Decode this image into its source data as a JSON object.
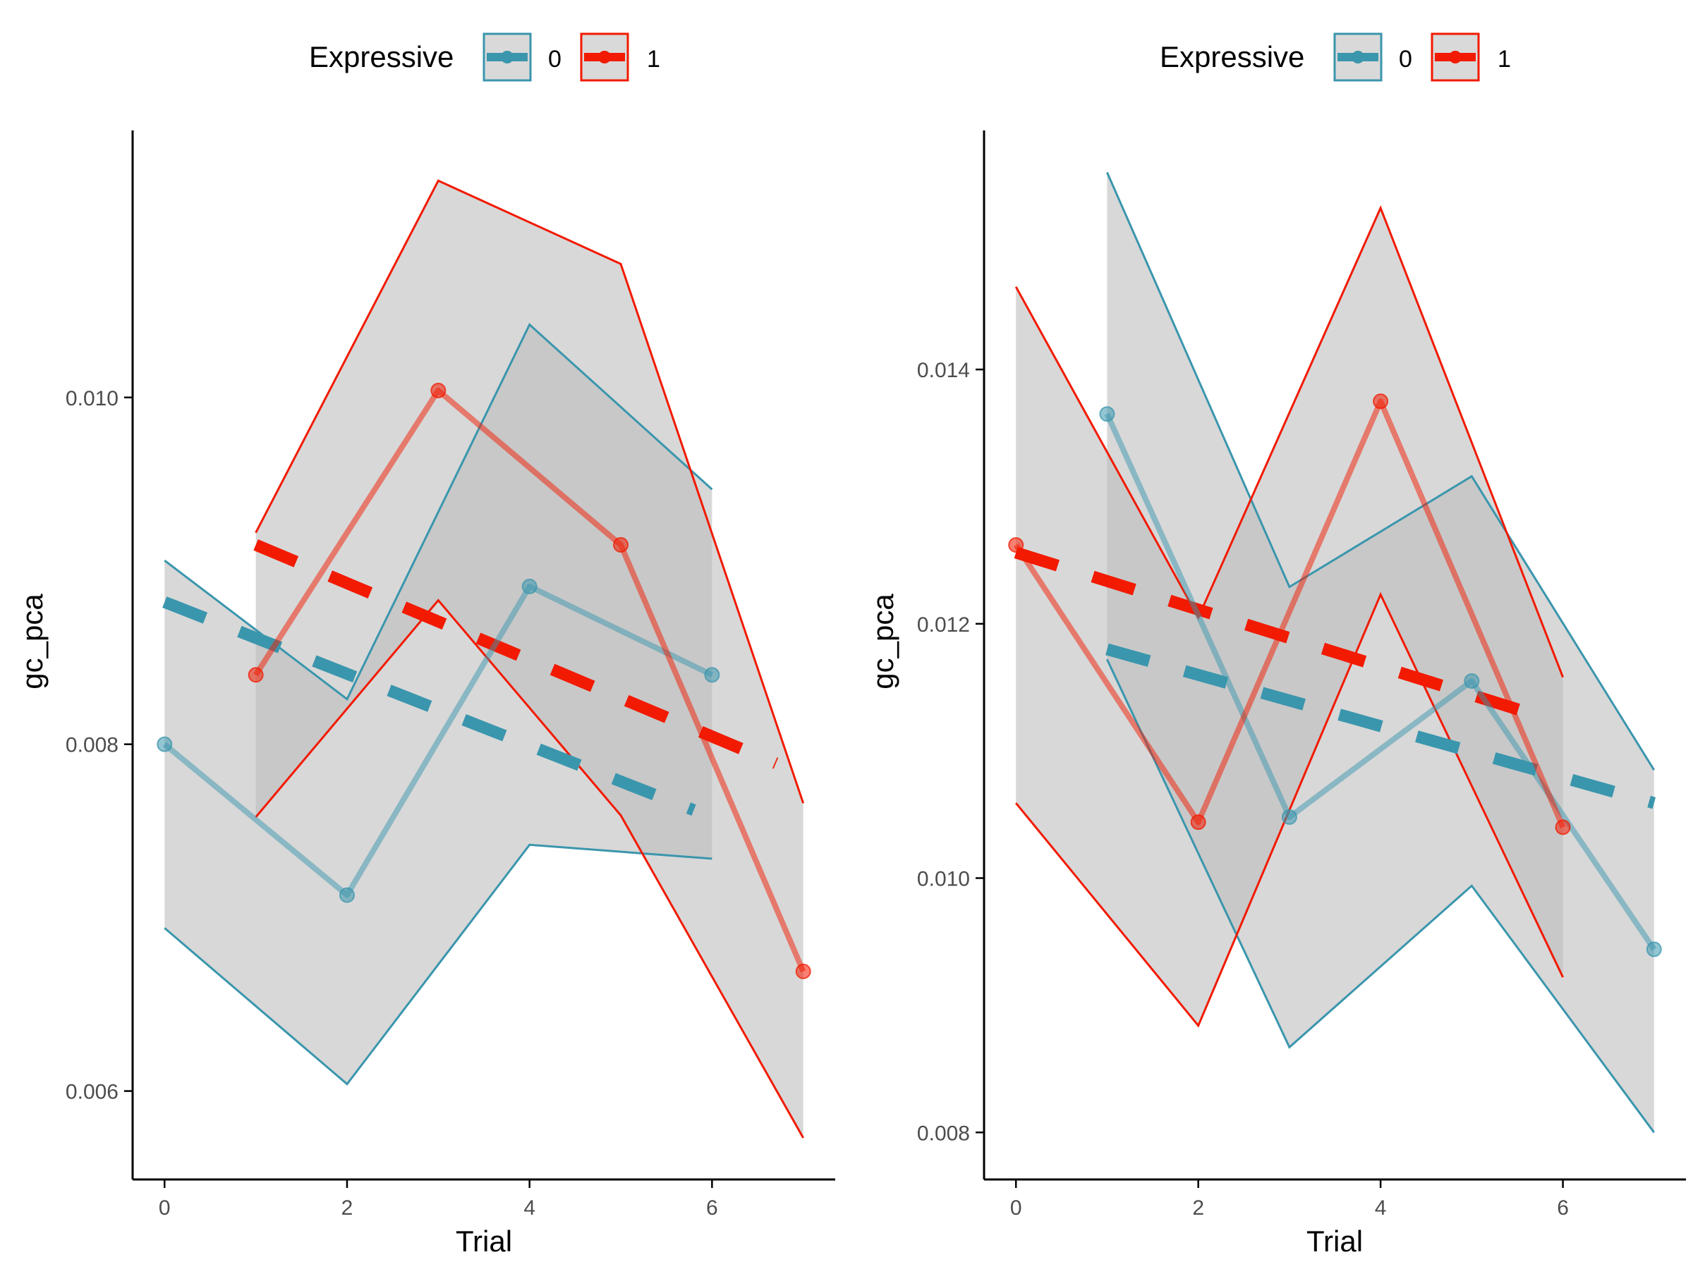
{
  "colors": {
    "group_0": "#3A96AD",
    "group_1": "#F21A00",
    "band_fill": "#BBBBBB",
    "axis": "#000000",
    "tick_text": "#4D4D4D"
  },
  "chart_data": [
    {
      "type": "line",
      "legend": {
        "title": "Expressive",
        "entries": [
          "0",
          "1"
        ],
        "position": "top"
      },
      "xlabel": "Trial",
      "ylabel": "gc_pca",
      "xlim": [
        -0.35,
        7.35
      ],
      "ylim": [
        0.00549,
        0.01154
      ],
      "x_ticks": [
        0,
        2,
        4,
        6
      ],
      "x_tick_labels": [
        "0",
        "2",
        "4",
        "6"
      ],
      "y_ticks": [
        0.006,
        0.008,
        0.01
      ],
      "y_tick_labels": [
        "0.006",
        "0.008",
        "0.010"
      ],
      "series": [
        {
          "name": "0",
          "x": [
            0,
            2,
            4,
            6
          ],
          "y": [
            0.008,
            0.00713,
            0.00891,
            0.0084
          ],
          "band_lower": [
            0.00694,
            0.00604,
            0.00742,
            0.00734
          ],
          "band_upper": [
            0.00906,
            0.00826,
            0.01042,
            0.00947
          ],
          "trend": {
            "x0": 0,
            "y0": 0.00882,
            "x1": 5.8,
            "y1": 0.00762
          }
        },
        {
          "name": "1",
          "x": [
            1,
            3,
            5,
            7
          ],
          "y": [
            0.0084,
            0.01004,
            0.00915,
            0.00669
          ],
          "band_lower": [
            0.00758,
            0.00883,
            0.00759,
            0.00573
          ],
          "band_upper": [
            0.00922,
            0.01125,
            0.01077,
            0.00766
          ],
          "trend": {
            "x0": 1,
            "y0": 0.00915,
            "x1": 6.7,
            "y1": 0.00789
          }
        }
      ]
    },
    {
      "type": "line",
      "legend": {
        "title": "Expressive",
        "entries": [
          "0",
          "1"
        ],
        "position": "top"
      },
      "xlabel": "Trial",
      "ylabel": "gc_pca",
      "xlim": [
        -0.35,
        7.35
      ],
      "ylim": [
        0.00763,
        0.01588
      ],
      "x_ticks": [
        0,
        2,
        4,
        6
      ],
      "x_tick_labels": [
        "0",
        "2",
        "4",
        "6"
      ],
      "y_ticks": [
        0.008,
        0.01,
        0.012,
        0.014
      ],
      "y_tick_labels": [
        "0.008",
        "0.010",
        "0.012",
        "0.014"
      ],
      "series": [
        {
          "name": "0",
          "x": [
            1,
            3,
            5,
            7
          ],
          "y": [
            0.01365,
            0.01048,
            0.01155,
            0.00944
          ],
          "band_lower": [
            0.01172,
            0.00867,
            0.00994,
            0.008
          ],
          "band_upper": [
            0.01555,
            0.01229,
            0.01316,
            0.01085
          ],
          "trend": {
            "x0": 1,
            "y0": 0.0118,
            "x1": 7,
            "y1": 0.01059
          }
        },
        {
          "name": "1",
          "x": [
            0,
            2,
            4,
            6
          ],
          "y": [
            0.01262,
            0.01044,
            0.01375,
            0.0104
          ],
          "band_lower": [
            0.01059,
            0.00884,
            0.01223,
            0.00922
          ],
          "band_upper": [
            0.01465,
            0.01205,
            0.01527,
            0.01158
          ],
          "trend": {
            "x0": 0,
            "y0": 0.01256,
            "x1": 5.85,
            "y1": 0.01125
          }
        }
      ]
    }
  ]
}
